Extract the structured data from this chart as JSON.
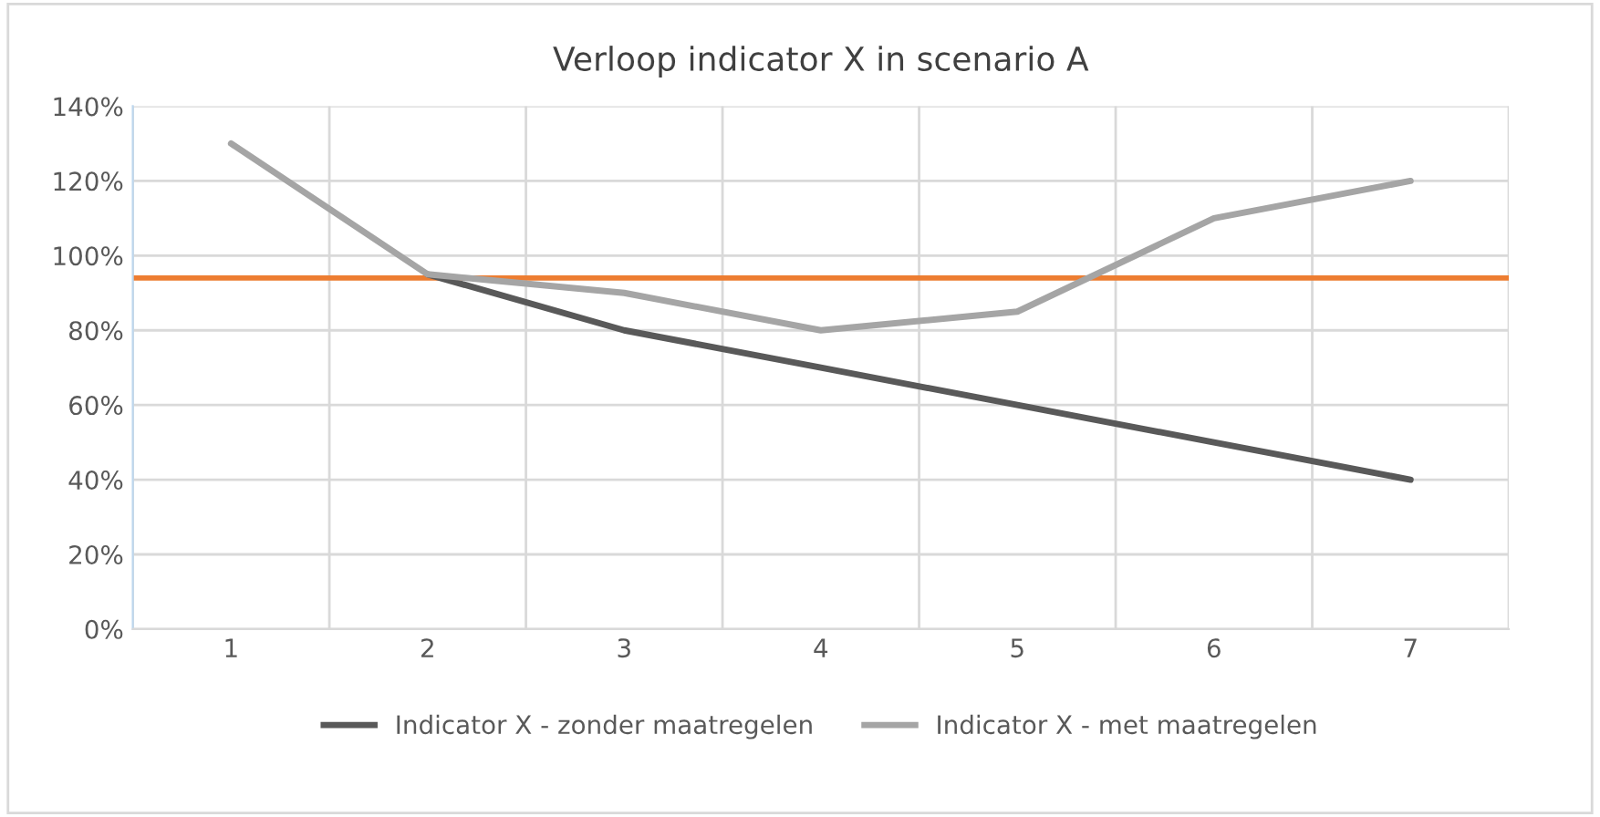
{
  "chart_data": {
    "type": "line",
    "title": "Verloop indicator X in scenario A",
    "categories": [
      "1",
      "2",
      "3",
      "4",
      "5",
      "6",
      "7"
    ],
    "series": [
      {
        "name": "Indicator X - zonder maatregelen",
        "color": "#595959",
        "values": [
          null,
          0.95,
          0.8,
          0.7,
          0.6,
          0.5,
          0.4
        ]
      },
      {
        "name": "Indicator X - met maatregelen",
        "color": "#a5a5a5",
        "values": [
          1.3,
          0.95,
          0.9,
          0.8,
          0.85,
          1.1,
          1.2
        ]
      }
    ],
    "ref_lines": [
      {
        "axis": "y",
        "value": 0.94,
        "label": null,
        "color": "#ed7d31"
      }
    ],
    "ylim": [
      0,
      1.4
    ],
    "yticks": [
      {
        "value": 0,
        "label": "0%"
      },
      {
        "value": 0.2,
        "label": "20%"
      },
      {
        "value": 0.4,
        "label": "40%"
      },
      {
        "value": 0.6,
        "label": "60%"
      },
      {
        "value": 0.8,
        "label": "80%"
      },
      {
        "value": 1.0,
        "label": "100%"
      },
      {
        "value": 1.2,
        "label": "120%"
      },
      {
        "value": 1.4,
        "label": "140%"
      }
    ],
    "grid": true,
    "legend": "bottom",
    "marker": "none",
    "line_style": "solid"
  }
}
